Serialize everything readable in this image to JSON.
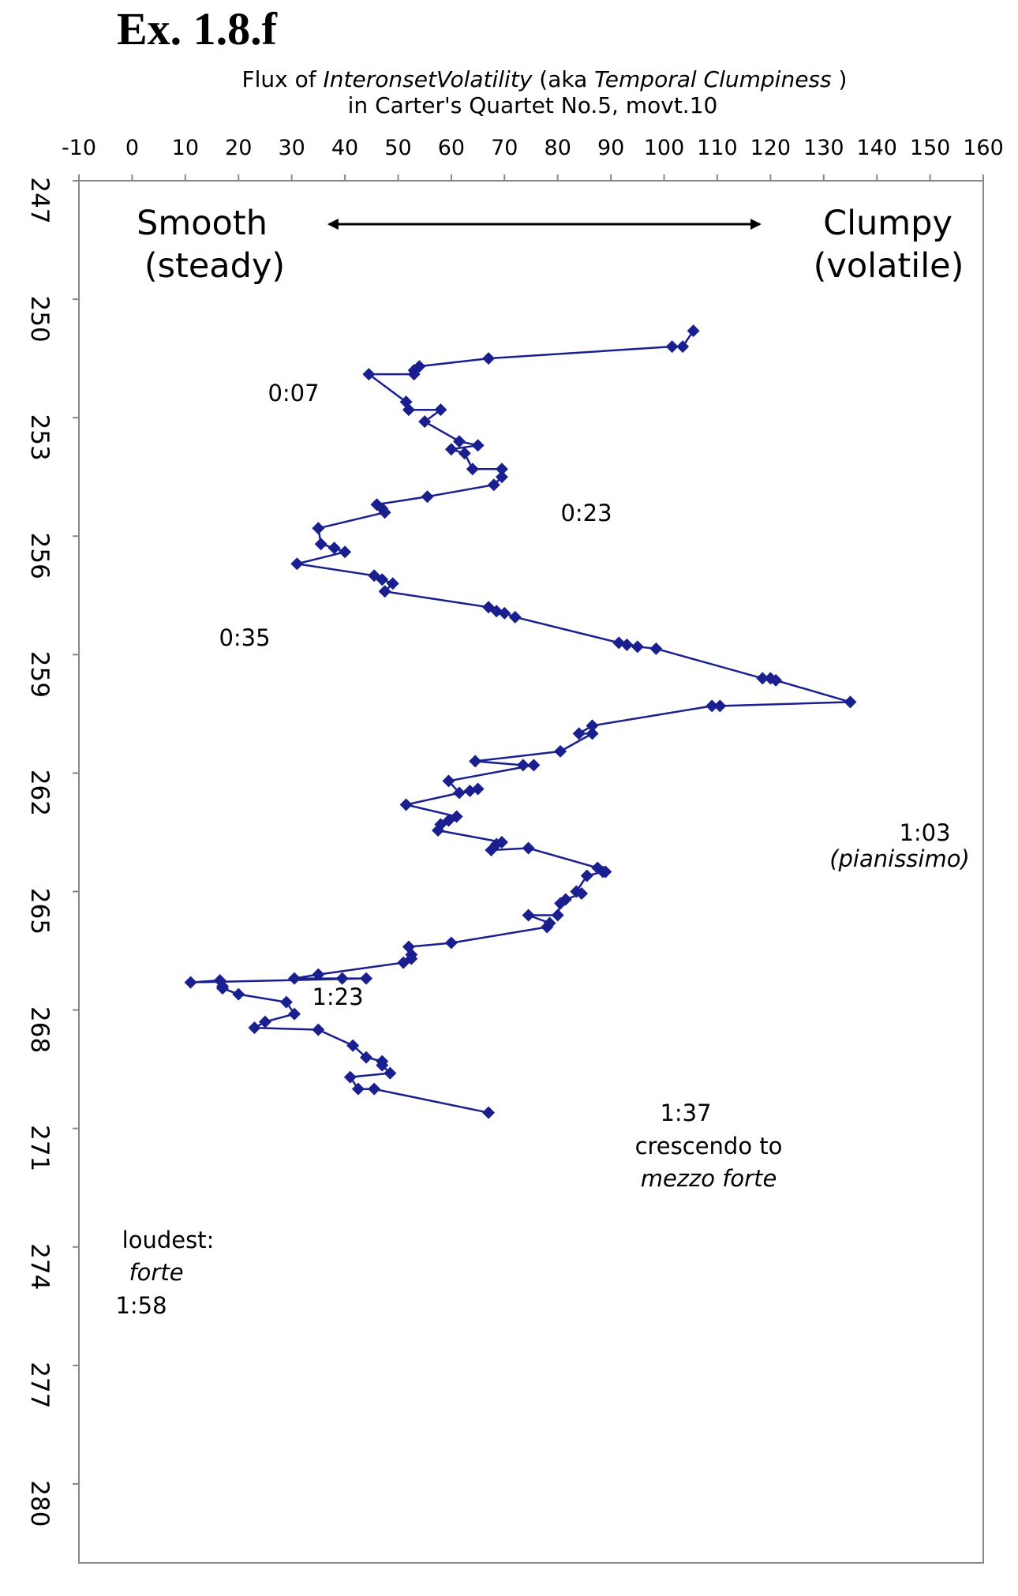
{
  "figure": {
    "label": "Ex. 1.8.f"
  },
  "chart_data": {
    "type": "line",
    "orientation": "horizontal-value-vertical-bar",
    "title_parts": [
      {
        "text": "Flux of ",
        "italic": false
      },
      {
        "text": "InteronsetVolatility",
        "italic": true
      },
      {
        "text": " (aka ",
        "italic": false
      },
      {
        "text": "Temporal Clumpiness",
        "italic": true
      },
      {
        "text": " )",
        "italic": false
      }
    ],
    "title_line2": "in Carter's Quartet No.5, movt.10",
    "xlim": [
      -10,
      160
    ],
    "xticks": [
      "-10",
      "0",
      "10",
      "20",
      "30",
      "40",
      "50",
      "60",
      "70",
      "80",
      "90",
      "100",
      "110",
      "120",
      "130",
      "140",
      "150",
      "160"
    ],
    "ylim": [
      247,
      282
    ],
    "yticks": [
      "247",
      "250",
      "253",
      "256",
      "259",
      "262",
      "265",
      "268",
      "271",
      "274",
      "277",
      "280"
    ],
    "grid": false,
    "color": "#1a1f8f",
    "marker": "diamond",
    "arrow": {
      "from": 37,
      "to": 118,
      "y": 248.1
    },
    "range_labels": {
      "left": [
        "Smooth",
        "(steady)"
      ],
      "right": [
        "Clumpy",
        "(volatile)"
      ]
    },
    "annotations": [
      {
        "lines": [
          {
            "text": "0:07",
            "italic": false
          }
        ]
      },
      {
        "lines": [
          {
            "text": "0:23",
            "italic": false
          }
        ]
      },
      {
        "lines": [
          {
            "text": "0:35",
            "italic": false
          }
        ]
      },
      {
        "lines": [
          {
            "text": "1:03",
            "italic": false
          },
          {
            "text": "(pianissimo)",
            "italic": true
          }
        ]
      },
      {
        "lines": [
          {
            "text": "1:23",
            "italic": false
          }
        ]
      },
      {
        "lines": [
          {
            "text": "1:37",
            "italic": false
          },
          {
            "text": "crescendo to",
            "italic": false
          },
          {
            "text": "mezzo forte",
            "italic": true
          }
        ]
      },
      {
        "lines": [
          {
            "text": "loudest:",
            "italic": false
          },
          {
            "text": "forte",
            "italic": true
          },
          {
            "text": "1:58",
            "italic": false
          }
        ]
      }
    ],
    "series": [
      {
        "points": [
          [
            105.5,
            250.8
          ],
          [
            103.5,
            251.2
          ],
          [
            101.5,
            251.2
          ],
          [
            67,
            251.5
          ],
          [
            54,
            251.7
          ],
          [
            53,
            251.8
          ],
          [
            53,
            251.9
          ],
          [
            44.5,
            251.9
          ],
          [
            51.5,
            252.6
          ],
          [
            52,
            252.8
          ],
          [
            58,
            252.8
          ],
          [
            55,
            253.1
          ],
          [
            61.5,
            253.6
          ],
          [
            65,
            253.7
          ],
          [
            60,
            253.8
          ],
          [
            62.5,
            253.9
          ],
          [
            64,
            254.3
          ],
          [
            69.5,
            254.3
          ],
          [
            69.5,
            254.5
          ],
          [
            68,
            254.7
          ],
          [
            55.5,
            255.0
          ],
          [
            46,
            255.2
          ],
          [
            47,
            255.3
          ],
          [
            47.5,
            255.4
          ],
          [
            35,
            255.8
          ],
          [
            35.5,
            256.2
          ],
          [
            38,
            256.3
          ],
          [
            40,
            256.4
          ],
          [
            31,
            256.7
          ],
          [
            45.5,
            257.0
          ],
          [
            47,
            257.1
          ],
          [
            49,
            257.2
          ],
          [
            47.5,
            257.4
          ],
          [
            67,
            257.8
          ],
          [
            68.5,
            257.9
          ],
          [
            70,
            257.95
          ],
          [
            72,
            258.05
          ],
          [
            91.5,
            258.7
          ],
          [
            93,
            258.75
          ],
          [
            95,
            258.8
          ],
          [
            98.5,
            258.85
          ],
          [
            118.5,
            259.6
          ],
          [
            120,
            259.6
          ],
          [
            121,
            259.65
          ],
          [
            135,
            260.2
          ],
          [
            110.5,
            260.3
          ],
          [
            109,
            260.3
          ],
          [
            86.5,
            260.8
          ],
          [
            84,
            261.0
          ],
          [
            86.5,
            261.0
          ],
          [
            80.5,
            261.45
          ],
          [
            64.5,
            261.7
          ],
          [
            73.5,
            261.8
          ],
          [
            75.5,
            261.8
          ],
          [
            59.5,
            262.2
          ],
          [
            61.5,
            262.5
          ],
          [
            63.5,
            262.45
          ],
          [
            65,
            262.4
          ],
          [
            51.5,
            262.8
          ],
          [
            61,
            263.1
          ],
          [
            59.5,
            263.2
          ],
          [
            58,
            263.3
          ],
          [
            57.5,
            263.45
          ],
          [
            69.5,
            263.75
          ],
          [
            68.5,
            263.8
          ],
          [
            67.5,
            263.95
          ],
          [
            74.5,
            263.9
          ],
          [
            87.5,
            264.4
          ],
          [
            89,
            264.5
          ],
          [
            88.5,
            264.5
          ],
          [
            85.5,
            264.6
          ],
          [
            83.5,
            265.0
          ],
          [
            84.5,
            265.05
          ],
          [
            81.5,
            265.2
          ],
          [
            80.5,
            265.3
          ],
          [
            80,
            265.6
          ],
          [
            74.5,
            265.6
          ],
          [
            78.5,
            265.8
          ],
          [
            78,
            265.9
          ],
          [
            60,
            266.3
          ],
          [
            52,
            266.4
          ],
          [
            52.5,
            266.6
          ],
          [
            52.5,
            266.7
          ],
          [
            51,
            266.8
          ],
          [
            35,
            267.1
          ],
          [
            30.5,
            267.2
          ],
          [
            39.5,
            267.2
          ],
          [
            44,
            267.2
          ],
          [
            11,
            267.3
          ],
          [
            16.5,
            267.25
          ],
          [
            17,
            267.4
          ],
          [
            17,
            267.45
          ],
          [
            20,
            267.6
          ],
          [
            29,
            267.8
          ],
          [
            30.5,
            268.1
          ],
          [
            25,
            268.3
          ],
          [
            23,
            268.45
          ],
          [
            35,
            268.5
          ],
          [
            41.5,
            268.9
          ],
          [
            44,
            269.2
          ],
          [
            47,
            269.3
          ],
          [
            47,
            269.4
          ],
          [
            48.5,
            269.6
          ],
          [
            41,
            269.7
          ],
          [
            42.5,
            270.0
          ],
          [
            45.5,
            270.0
          ],
          [
            67,
            270.6
          ]
        ]
      }
    ]
  }
}
